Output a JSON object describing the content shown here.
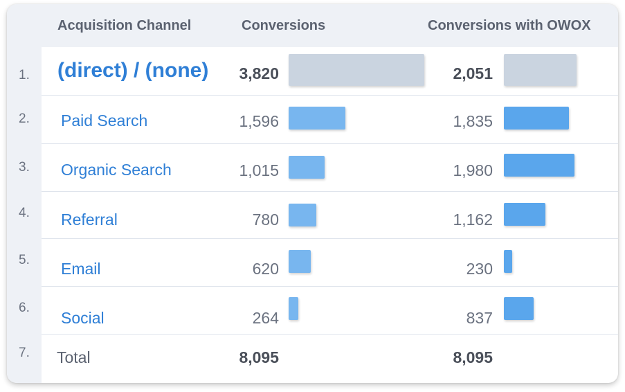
{
  "header": {
    "channel": "Acquisition Channel",
    "conversions": "Conversions",
    "owox": "Conversions with OWOX"
  },
  "rows": [
    {
      "rank": "1.",
      "channel": "(direct) / (none)",
      "conversions": "3,820",
      "owox": "2,051"
    },
    {
      "rank": "2.",
      "channel": "Paid Search",
      "conversions": "1,596",
      "owox": "1,835"
    },
    {
      "rank": "3.",
      "channel": "Organic Search",
      "conversions": "1,015",
      "owox": "1,980"
    },
    {
      "rank": "4.",
      "channel": "Referral",
      "conversions": "780",
      "owox": "1,162"
    },
    {
      "rank": "5.",
      "channel": "Email",
      "conversions": "620",
      "owox": "230"
    },
    {
      "rank": "6.",
      "channel": "Social",
      "conversions": "264",
      "owox": "837"
    }
  ],
  "total": {
    "rank": "7.",
    "label": "Total",
    "conversions": "8,095",
    "owox": "8,095"
  },
  "bars": {
    "conversions_values": [
      3820,
      1596,
      1015,
      780,
      620,
      264
    ],
    "owox_values": [
      2051,
      1835,
      1980,
      1162,
      230,
      837
    ],
    "max": 3820
  },
  "colors": {
    "top_bar": "#cad4e0",
    "conv_bar": "#78b6ef",
    "owox_bar": "#5aa6ec",
    "link": "#2f7fd6"
  }
}
